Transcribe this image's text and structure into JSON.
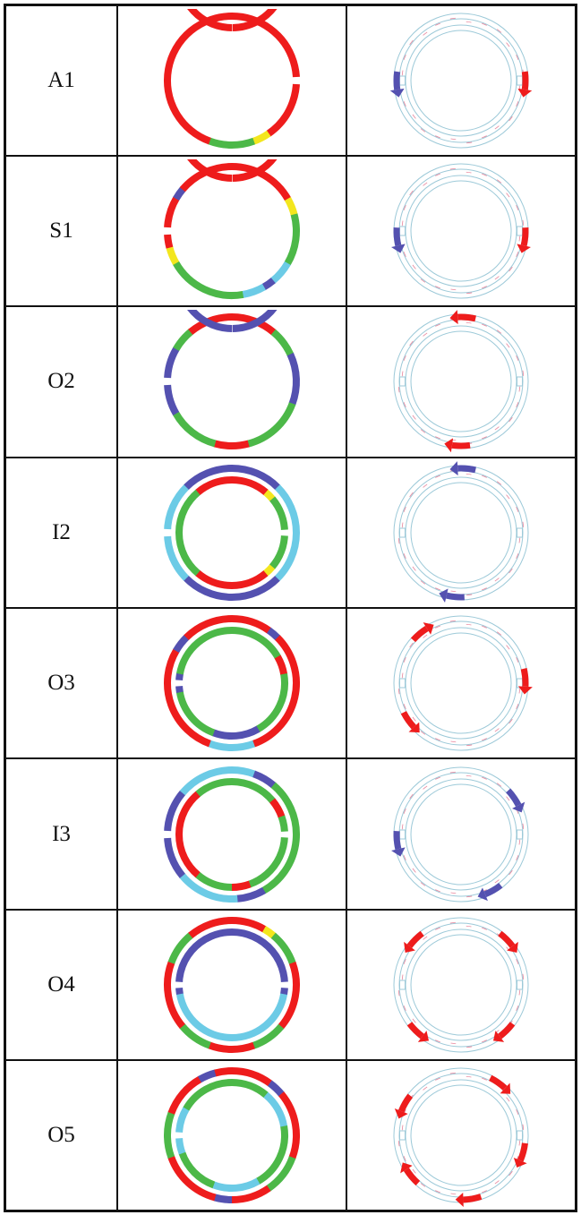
{
  "colors": {
    "red": "#ee1c1c",
    "green": "#4cb848",
    "blue": "#5451b0",
    "cyan": "#6ccbe6",
    "yellow": "#f3e61e",
    "arrow_red": "#ee2222",
    "arrow_blue": "#5654b8",
    "outline": "#9cc9d8",
    "trace": "#e05070"
  },
  "modes": [
    {
      "label": "A1",
      "outer": [
        [
          "red",
          0,
          145
        ],
        [
          "yellow",
          145,
          160
        ],
        [
          "green",
          160,
          200
        ],
        [
          "red",
          200,
          360
        ]
      ],
      "inner": [
        [
          "red",
          0,
          360
        ]
      ],
      "outer_gaps": [
        90
      ],
      "inner_gaps": [
        270
      ],
      "arrows": [
        {
          "angle": 90,
          "dir": "cw",
          "color": "red"
        },
        {
          "angle": 270,
          "dir": "ccw",
          "color": "blue"
        }
      ]
    },
    {
      "label": "S1",
      "outer": [
        [
          "red",
          0,
          60
        ],
        [
          "yellow",
          60,
          75
        ],
        [
          "green",
          75,
          120
        ],
        [
          "cyan",
          120,
          140
        ],
        [
          "blue",
          140,
          150
        ],
        [
          "cyan",
          150,
          170
        ],
        [
          "green",
          170,
          240
        ],
        [
          "yellow",
          240,
          255
        ],
        [
          "red",
          255,
          300
        ],
        [
          "blue",
          300,
          310
        ],
        [
          "red",
          310,
          360
        ]
      ],
      "inner": [
        [
          "red",
          0,
          360
        ]
      ],
      "outer_gaps": [
        270
      ],
      "inner_gaps": [
        90
      ],
      "arrows": [
        {
          "angle": 95,
          "dir": "cw",
          "color": "red"
        },
        {
          "angle": 265,
          "dir": "ccw",
          "color": "blue"
        }
      ]
    },
    {
      "label": "O2",
      "outer": [
        [
          "red",
          0,
          40
        ],
        [
          "green",
          40,
          65
        ],
        [
          "blue",
          65,
          110
        ],
        [
          "green",
          110,
          165
        ],
        [
          "red",
          165,
          195
        ],
        [
          "green",
          195,
          240
        ],
        [
          "blue",
          240,
          300
        ],
        [
          "green",
          300,
          320
        ],
        [
          "red",
          320,
          360
        ]
      ],
      "inner": [
        [
          "blue",
          0,
          360
        ]
      ],
      "outer_gaps": [
        270
      ],
      "inner_gaps": [
        90
      ],
      "arrows": [
        {
          "angle": 5,
          "dir": "ccw",
          "color": "red"
        },
        {
          "angle": 180,
          "dir": "cw",
          "color": "red"
        }
      ]
    },
    {
      "label": "I2",
      "outer": [
        [
          "blue",
          0,
          45
        ],
        [
          "cyan",
          45,
          135
        ],
        [
          "blue",
          135,
          225
        ],
        [
          "cyan",
          225,
          315
        ],
        [
          "blue",
          315,
          360
        ]
      ],
      "inner": [
        [
          "red",
          0,
          40
        ],
        [
          "yellow",
          40,
          50
        ],
        [
          "green",
          50,
          130
        ],
        [
          "yellow",
          130,
          140
        ],
        [
          "red",
          140,
          220
        ],
        [
          "green",
          220,
          320
        ],
        [
          "red",
          320,
          360
        ]
      ],
      "outer_gaps": [
        270
      ],
      "inner_gaps": [
        90
      ],
      "arrows": [
        {
          "angle": 5,
          "dir": "ccw",
          "color": "blue"
        },
        {
          "angle": 185,
          "dir": "cw",
          "color": "blue"
        }
      ]
    },
    {
      "label": "O3",
      "outer": [
        [
          "red",
          0,
          35
        ],
        [
          "blue",
          35,
          45
        ],
        [
          "red",
          45,
          160
        ],
        [
          "cyan",
          160,
          200
        ],
        [
          "red",
          200,
          300
        ],
        [
          "blue",
          300,
          315
        ],
        [
          "red",
          315,
          360
        ]
      ],
      "inner": [
        [
          "green",
          0,
          60
        ],
        [
          "red",
          60,
          80
        ],
        [
          "green",
          80,
          150
        ],
        [
          "blue",
          150,
          200
        ],
        [
          "green",
          200,
          260
        ],
        [
          "blue",
          260,
          280
        ],
        [
          "green",
          280,
          360
        ]
      ],
      "outer_gaps": [],
      "inner_gaps": [
        270
      ],
      "arrows": [
        {
          "angle": 85,
          "dir": "cw",
          "color": "red"
        },
        {
          "angle": 235,
          "dir": "ccw",
          "color": "red"
        },
        {
          "angle": 320,
          "dir": "cw",
          "color": "red"
        }
      ]
    },
    {
      "label": "I3",
      "outer": [
        [
          "cyan",
          0,
          20
        ],
        [
          "blue",
          20,
          40
        ],
        [
          "green",
          40,
          150
        ],
        [
          "blue",
          150,
          175
        ],
        [
          "cyan",
          175,
          230
        ],
        [
          "blue",
          230,
          310
        ],
        [
          "cyan",
          310,
          360
        ]
      ],
      "inner": [
        [
          "green",
          0,
          50
        ],
        [
          "red",
          50,
          70
        ],
        [
          "green",
          70,
          160
        ],
        [
          "red",
          160,
          180
        ],
        [
          "green",
          180,
          220
        ],
        [
          "red",
          220,
          320
        ],
        [
          "green",
          320,
          360
        ]
      ],
      "outer_gaps": [
        270
      ],
      "inner_gaps": [
        90
      ],
      "arrows": [
        {
          "angle": 55,
          "dir": "cw",
          "color": "blue"
        },
        {
          "angle": 150,
          "dir": "cw",
          "color": "blue"
        },
        {
          "angle": 265,
          "dir": "ccw",
          "color": "blue"
        }
      ]
    },
    {
      "label": "O4",
      "outer": [
        [
          "red",
          0,
          30
        ],
        [
          "yellow",
          30,
          40
        ],
        [
          "green",
          40,
          70
        ],
        [
          "red",
          70,
          130
        ],
        [
          "green",
          130,
          160
        ],
        [
          "red",
          160,
          200
        ],
        [
          "green",
          200,
          230
        ],
        [
          "red",
          230,
          290
        ],
        [
          "green",
          290,
          320
        ],
        [
          "red",
          320,
          360
        ]
      ],
      "inner": [
        [
          "blue",
          0,
          100
        ],
        [
          "cyan",
          100,
          260
        ],
        [
          "blue",
          260,
          360
        ]
      ],
      "outer_gaps": [],
      "inner_gaps": [
        90,
        270
      ],
      "arrows": [
        {
          "angle": 45,
          "dir": "cw",
          "color": "red"
        },
        {
          "angle": 135,
          "dir": "cw",
          "color": "red"
        },
        {
          "angle": 225,
          "dir": "ccw",
          "color": "red"
        },
        {
          "angle": 315,
          "dir": "ccw",
          "color": "red"
        }
      ]
    },
    {
      "label": "O5",
      "outer": [
        [
          "red",
          0,
          36
        ],
        [
          "blue",
          36,
          50
        ],
        [
          "red",
          50,
          110
        ],
        [
          "green",
          110,
          145
        ],
        [
          "red",
          145,
          180
        ],
        [
          "blue",
          180,
          195
        ],
        [
          "red",
          195,
          250
        ],
        [
          "green",
          250,
          290
        ],
        [
          "red",
          290,
          330
        ],
        [
          "blue",
          330,
          345
        ],
        [
          "red",
          345,
          360
        ]
      ],
      "inner": [
        [
          "green",
          0,
          40
        ],
        [
          "cyan",
          40,
          80
        ],
        [
          "green",
          80,
          150
        ],
        [
          "cyan",
          150,
          200
        ],
        [
          "green",
          200,
          250
        ],
        [
          "cyan",
          250,
          300
        ],
        [
          "green",
          300,
          360
        ]
      ],
      "outer_gaps": [],
      "inner_gaps": [
        270
      ],
      "arrows": [
        {
          "angle": 35,
          "dir": "cw",
          "color": "red"
        },
        {
          "angle": 105,
          "dir": "cw",
          "color": "red"
        },
        {
          "angle": 170,
          "dir": "cw",
          "color": "red"
        },
        {
          "angle": 230,
          "dir": "cw",
          "color": "red"
        },
        {
          "angle": 300,
          "dir": "ccw",
          "color": "red"
        }
      ]
    }
  ]
}
